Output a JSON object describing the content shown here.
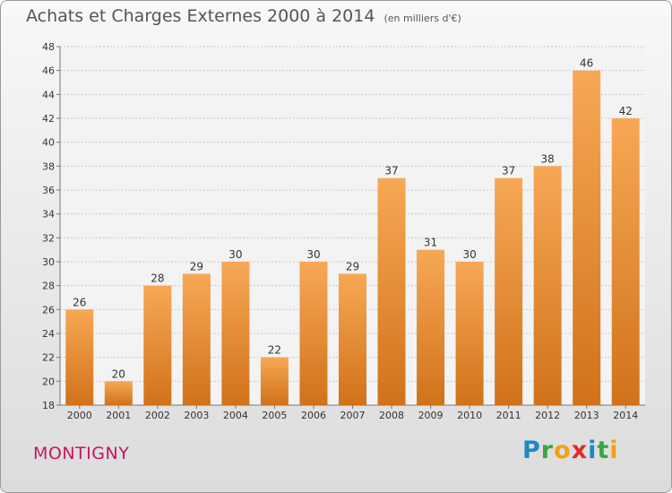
{
  "title": "Achats et Charges Externes 2000 à 2014",
  "unit": "(en milliers d'€)",
  "commune": "MONTIGNY",
  "logo": {
    "letters": [
      {
        "ch": "P",
        "color": "#1e88c8"
      },
      {
        "ch": "r",
        "color": "#35a845"
      },
      {
        "ch": "o",
        "color": "#f2a114"
      },
      {
        "ch": "x",
        "color": "#e22a2a"
      },
      {
        "ch": "i",
        "color": "#1e88c8"
      },
      {
        "ch": "t",
        "color": "#35a845"
      },
      {
        "ch": "i",
        "color": "#f2a114"
      }
    ]
  },
  "colors": {
    "bar_top": "#f7a855",
    "bar_bottom": "#d1721a",
    "title": "#555555",
    "commune": "#c4185c"
  },
  "chart_data": {
    "type": "bar",
    "title": "Achats et Charges Externes 2000 à 2014",
    "subtitle": "(en milliers d'€)",
    "xlabel": "",
    "ylabel": "",
    "categories": [
      "2000",
      "2001",
      "2002",
      "2003",
      "2004",
      "2005",
      "2006",
      "2007",
      "2008",
      "2009",
      "2010",
      "2011",
      "2012",
      "2013",
      "2014"
    ],
    "values": [
      26,
      20,
      28,
      29,
      30,
      22,
      30,
      29,
      37,
      31,
      30,
      37,
      38,
      46,
      42
    ],
    "ylim": [
      18,
      48
    ],
    "yticks": [
      18,
      20,
      22,
      24,
      26,
      28,
      30,
      32,
      34,
      36,
      38,
      40,
      42,
      44,
      46,
      48
    ],
    "grid": "horizontal dashed",
    "legend": "none"
  }
}
